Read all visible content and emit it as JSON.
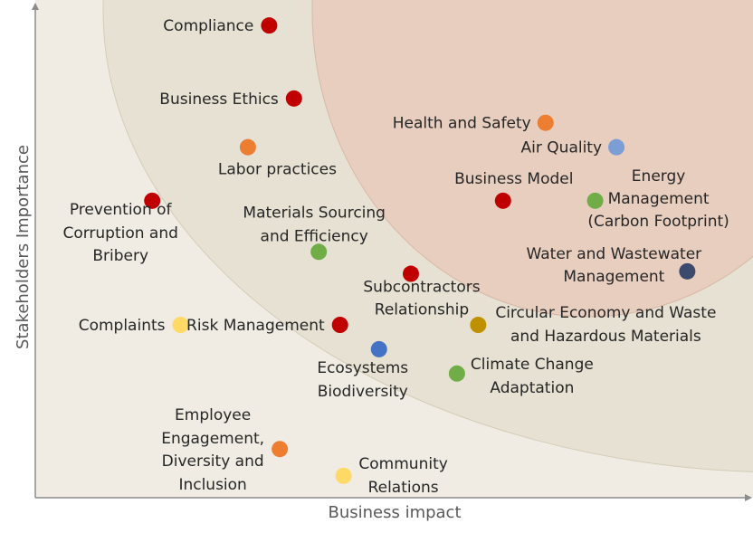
{
  "chart_data": {
    "type": "scatter",
    "title": "",
    "xlabel": "Business impact",
    "ylabel": "Stakeholders Importance",
    "xlim": [
      0,
      100
    ],
    "ylim": [
      0,
      100
    ],
    "grid": false,
    "zones": [
      {
        "name": "low priority",
        "color": "#f0ece3"
      },
      {
        "name": "medium priority",
        "color": "#e6e1d2"
      },
      {
        "name": "high priority",
        "color": "#e8cebf"
      }
    ],
    "points": [
      {
        "label": "Compliance",
        "x": 33.0,
        "y": 97.0,
        "color": "#c00000"
      },
      {
        "label": "Business Ethics",
        "x": 36.5,
        "y": 82.0,
        "color": "#c00000"
      },
      {
        "label": "Labor practices",
        "x": 30.0,
        "y": 72.0,
        "color": "#ed7d31"
      },
      {
        "label": "Prevention of Corruption and Bribery",
        "x": 16.5,
        "y": 61.0,
        "color": "#c00000"
      },
      {
        "label": "Materials Sourcing and Efficiency",
        "x": 40.0,
        "y": 50.5,
        "color": "#70ad47"
      },
      {
        "label": "Complaints",
        "x": 20.5,
        "y": 35.5,
        "color": "#ffd966"
      },
      {
        "label": "Risk Management",
        "x": 43.0,
        "y": 35.5,
        "color": "#c00000"
      },
      {
        "label": "Ecosystems Biodiversity",
        "x": 48.5,
        "y": 30.5,
        "color": "#4472c4"
      },
      {
        "label": "Subcontractors Relationship",
        "x": 53.0,
        "y": 46.0,
        "color": "#c00000"
      },
      {
        "label": "Circular Economy and Waste and Hazardous Materials",
        "x": 62.5,
        "y": 35.5,
        "color": "#bf9000"
      },
      {
        "label": "Climate Change Adaptation",
        "x": 59.5,
        "y": 25.5,
        "color": "#70ad47"
      },
      {
        "label": "Employee Engagement, Diversity and Inclusion",
        "x": 34.5,
        "y": 10.0,
        "color": "#ed7d31"
      },
      {
        "label": "Community Relations",
        "x": 43.5,
        "y": 4.5,
        "color": "#ffd966"
      },
      {
        "label": "Health and Safety",
        "x": 72.0,
        "y": 77.0,
        "color": "#ed7d31"
      },
      {
        "label": "Air Quality",
        "x": 82.0,
        "y": 72.0,
        "color": "#7b9ed4"
      },
      {
        "label": "Business Model",
        "x": 66.0,
        "y": 61.0,
        "color": "#c00000"
      },
      {
        "label": "Energy Management (Carbon Footprint)",
        "x": 79.0,
        "y": 61.0,
        "color": "#70ad47"
      },
      {
        "label": "Water and Wastewater Management",
        "x": 92.0,
        "y": 46.5,
        "color": "#3c4a6e"
      }
    ]
  }
}
